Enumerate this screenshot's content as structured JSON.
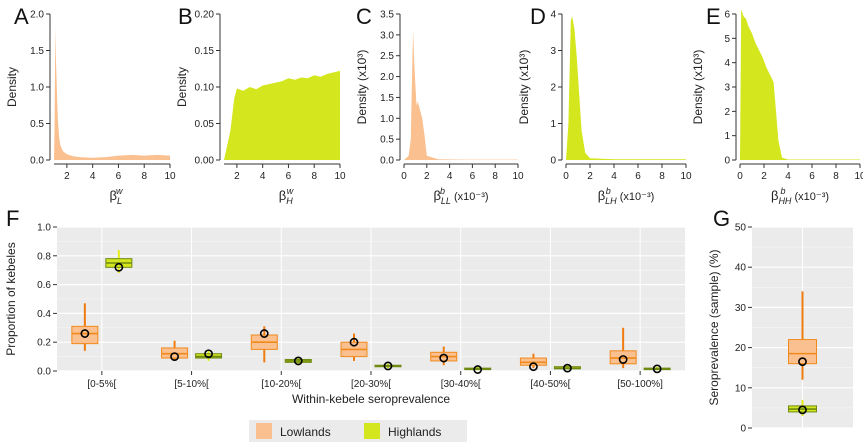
{
  "chart_data": [
    {
      "panel": "A",
      "type": "area",
      "ylabel": "Density",
      "xlabel_base": "β",
      "xlabel_sub": "L",
      "xlabel_sup": "w",
      "xlabel_suffix": "",
      "xlim": [
        1,
        10
      ],
      "ylim": [
        0,
        2.0
      ],
      "x_ticks": [
        "2",
        "4",
        "6",
        "8",
        "10"
      ],
      "y_ticks": [
        "0.0",
        "0.5",
        "1.0",
        "1.5",
        "2.0"
      ],
      "series": [
        {
          "color": "#fbc08f",
          "x": [
            1.0,
            1.05,
            1.1,
            1.15,
            1.2,
            1.25,
            1.3,
            1.4,
            1.5,
            1.7,
            2.0,
            2.5,
            3.0,
            4.0,
            5.0,
            6.0,
            7.0,
            8.0,
            9.0,
            10.0
          ],
          "y": [
            0.0,
            0.5,
            1.82,
            1.4,
            1.1,
            0.8,
            0.55,
            0.3,
            0.2,
            0.12,
            0.08,
            0.05,
            0.04,
            0.03,
            0.04,
            0.06,
            0.07,
            0.06,
            0.07,
            0.06
          ]
        }
      ]
    },
    {
      "panel": "B",
      "type": "area",
      "ylabel": "Density",
      "xlabel_base": "β",
      "xlabel_sub": "H",
      "xlabel_sup": "w",
      "xlabel_suffix": "",
      "xlim": [
        1,
        10
      ],
      "ylim": [
        0,
        0.2
      ],
      "x_ticks": [
        "2",
        "4",
        "6",
        "8",
        "10"
      ],
      "y_ticks": [
        "0.00",
        "0.05",
        "0.10",
        "0.15",
        "0.20"
      ],
      "series": [
        {
          "color": "#d4e61e",
          "x": [
            1.0,
            1.5,
            1.8,
            2.0,
            2.5,
            3.0,
            3.5,
            4.0,
            4.5,
            5.0,
            5.5,
            6.0,
            6.5,
            7.0,
            7.5,
            8.0,
            8.5,
            9.0,
            9.5,
            10.0
          ],
          "y": [
            0.0,
            0.04,
            0.085,
            0.098,
            0.095,
            0.1,
            0.097,
            0.102,
            0.104,
            0.106,
            0.108,
            0.112,
            0.11,
            0.113,
            0.112,
            0.116,
            0.114,
            0.118,
            0.12,
            0.122
          ]
        }
      ]
    },
    {
      "panel": "C",
      "type": "area",
      "ylabel": "Density (x10³)",
      "xlabel_base": "β",
      "xlabel_sub": "LL",
      "xlabel_sup": "b",
      "xlabel_suffix": " (x10⁻³)",
      "xlim": [
        0,
        10
      ],
      "ylim": [
        0,
        3.5
      ],
      "x_ticks": [
        "0",
        "2",
        "4",
        "6",
        "8",
        "10"
      ],
      "y_ticks": [
        "0.0",
        "0.5",
        "1.0",
        "1.5",
        "2.0",
        "2.5",
        "3.0",
        "3.5"
      ],
      "series": [
        {
          "color": "#fbc08f",
          "x": [
            0.0,
            0.4,
            0.6,
            0.7,
            0.8,
            0.9,
            1.0,
            1.1,
            1.2,
            1.4,
            1.6,
            1.8,
            2.0,
            3.0,
            5.0,
            10.0
          ],
          "y": [
            0.0,
            0.1,
            0.5,
            2.0,
            3.1,
            2.3,
            1.8,
            1.3,
            1.4,
            1.2,
            1.0,
            0.6,
            0.1,
            0.02,
            0.01,
            0.01
          ]
        }
      ]
    },
    {
      "panel": "D",
      "type": "area",
      "ylabel": "Density (x10³)",
      "xlabel_base": "β",
      "xlabel_sub": "LH",
      "xlabel_sup": "b",
      "xlabel_suffix": " (x10⁻³)",
      "xlim": [
        0,
        10
      ],
      "ylim": [
        0,
        4
      ],
      "x_ticks": [
        "0",
        "2",
        "4",
        "6",
        "8",
        "10"
      ],
      "y_ticks": [
        "0",
        "1",
        "2",
        "3",
        "4"
      ],
      "series": [
        {
          "color": "#d4e61e",
          "x": [
            0.0,
            0.2,
            0.4,
            0.5,
            0.7,
            0.9,
            1.1,
            1.3,
            1.6,
            2.0,
            4.0,
            10.0
          ],
          "y": [
            0.0,
            1.0,
            3.8,
            3.95,
            3.6,
            2.8,
            1.8,
            0.8,
            0.2,
            0.05,
            0.02,
            0.02
          ]
        }
      ]
    },
    {
      "panel": "E",
      "type": "area",
      "ylabel": "Density (x10³)",
      "xlabel_base": "β",
      "xlabel_sub": "HH",
      "xlabel_sup": "b",
      "xlabel_suffix": " (x10⁻³)",
      "xlim": [
        0,
        10
      ],
      "ylim": [
        0,
        6
      ],
      "x_ticks": [
        "0",
        "2",
        "4",
        "6",
        "8",
        "10"
      ],
      "y_ticks": [
        "0",
        "1",
        "2",
        "3",
        "4",
        "5",
        "6"
      ],
      "series": [
        {
          "color": "#d4e61e",
          "x": [
            0.0,
            0.1,
            0.3,
            0.5,
            0.7,
            1.0,
            1.3,
            1.6,
            1.9,
            2.2,
            2.5,
            2.8,
            3.0,
            3.2,
            3.5,
            4.0,
            10.0
          ],
          "y": [
            0.0,
            6.2,
            5.9,
            5.8,
            5.5,
            5.2,
            4.8,
            4.5,
            4.2,
            3.8,
            3.5,
            3.2,
            2.0,
            0.8,
            0.1,
            0.02,
            0.02
          ]
        }
      ]
    },
    {
      "panel": "F",
      "type": "box",
      "ylabel": "Proportion of kebeles",
      "xlabel": "Within-kebele seroprevalence",
      "ylim": [
        0,
        1.0
      ],
      "y_ticks": [
        "0.0",
        "0.2",
        "0.4",
        "0.6",
        "0.8",
        "1.0"
      ],
      "categories": [
        "[0-5%[",
        "[5-10%[",
        "[10-20%[",
        "[20-30%[",
        "[30-40%[",
        "[40-50%[",
        "[50-100%]"
      ],
      "series": [
        {
          "name": "Lowlands",
          "color": "#fbc08f",
          "stroke": "#f08a1c",
          "whisker": "#f07c10",
          "boxes": [
            {
              "min": 0.14,
              "q1": 0.19,
              "median": 0.26,
              "q3": 0.31,
              "max": 0.47,
              "observed": 0.26
            },
            {
              "min": 0.07,
              "q1": 0.09,
              "median": 0.12,
              "q3": 0.16,
              "max": 0.21,
              "observed": 0.1
            },
            {
              "min": 0.06,
              "q1": 0.15,
              "median": 0.2,
              "q3": 0.25,
              "max": 0.31,
              "observed": 0.26
            },
            {
              "min": 0.07,
              "q1": 0.1,
              "median": 0.15,
              "q3": 0.2,
              "max": 0.26,
              "observed": 0.2
            },
            {
              "min": 0.04,
              "q1": 0.07,
              "median": 0.1,
              "q3": 0.13,
              "max": 0.17,
              "observed": 0.09
            },
            {
              "min": 0.02,
              "q1": 0.04,
              "median": 0.06,
              "q3": 0.09,
              "max": 0.12,
              "observed": 0.03
            },
            {
              "min": 0.02,
              "q1": 0.05,
              "median": 0.09,
              "q3": 0.14,
              "max": 0.3,
              "observed": 0.08
            }
          ]
        },
        {
          "name": "Highlands",
          "color": "#d4e61e",
          "stroke": "#6f8a12",
          "whisker": "#e6ee1a",
          "boxes": [
            {
              "min": 0.68,
              "q1": 0.72,
              "median": 0.75,
              "q3": 0.78,
              "max": 0.84,
              "observed": 0.72
            },
            {
              "min": 0.07,
              "q1": 0.09,
              "median": 0.1,
              "q3": 0.12,
              "max": 0.14,
              "observed": 0.12
            },
            {
              "min": 0.04,
              "q1": 0.06,
              "median": 0.07,
              "q3": 0.08,
              "max": 0.09,
              "observed": 0.07
            },
            {
              "min": 0.02,
              "q1": 0.03,
              "median": 0.035,
              "q3": 0.04,
              "max": 0.05,
              "observed": 0.035
            },
            {
              "min": 0.005,
              "q1": 0.01,
              "median": 0.015,
              "q3": 0.02,
              "max": 0.03,
              "observed": 0.01
            },
            {
              "min": 0.01,
              "q1": 0.015,
              "median": 0.02,
              "q3": 0.03,
              "max": 0.04,
              "observed": 0.02
            },
            {
              "min": 0.005,
              "q1": 0.01,
              "median": 0.015,
              "q3": 0.02,
              "max": 0.03,
              "observed": 0.015
            }
          ]
        }
      ]
    },
    {
      "panel": "G",
      "type": "box",
      "ylabel": "Seroprevalence (sample) (%)",
      "ylim": [
        0,
        50
      ],
      "y_ticks": [
        "0",
        "10",
        "20",
        "30",
        "40",
        "50"
      ],
      "series": [
        {
          "name": "Lowlands",
          "color": "#fbc08f",
          "stroke": "#f08a1c",
          "whisker": "#f07c10",
          "boxes": [
            {
              "min": 12,
              "q1": 16,
              "median": 18.5,
              "q3": 22,
              "max": 34,
              "observed": 16.5
            }
          ]
        },
        {
          "name": "Highlands",
          "color": "#d4e61e",
          "stroke": "#6f8a12",
          "whisker": "#e6ee1a",
          "boxes": [
            {
              "min": 3,
              "q1": 4,
              "median": 4.7,
              "q3": 5.5,
              "max": 7,
              "observed": 4.5
            }
          ]
        }
      ]
    }
  ],
  "legend": [
    {
      "label": "Lowlands",
      "color": "#fbc08f"
    },
    {
      "label": "Highlands",
      "color": "#d4e61e"
    }
  ],
  "colors": {
    "panel_bg": "#ebebeb",
    "grid": "#ffffff",
    "axis": "#333333",
    "legend_bg": "#ebebeb"
  }
}
